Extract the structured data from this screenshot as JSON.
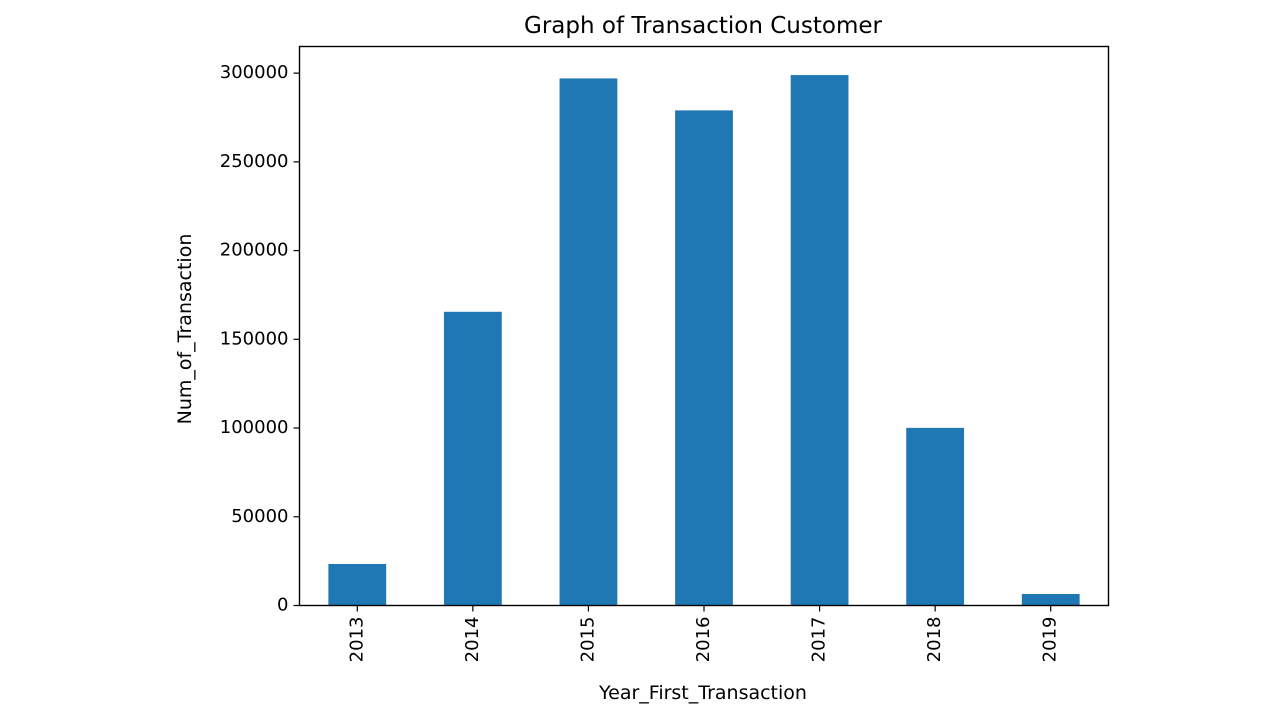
{
  "colors": {
    "bar": "#1f77b4",
    "axes": "#000000",
    "background": "#ffffff"
  },
  "chart_data": {
    "type": "bar",
    "title": "Graph of Transaction Customer",
    "xlabel": "Year_First_Transaction",
    "ylabel": "Num_of_Transaction",
    "categories": [
      "2013",
      "2014",
      "2015",
      "2016",
      "2017",
      "2018",
      "2019"
    ],
    "values": [
      23400,
      165500,
      297000,
      279000,
      298900,
      100100,
      6500
    ],
    "ylim": [
      0,
      315000
    ],
    "yticks": [
      0,
      50000,
      100000,
      150000,
      200000,
      250000,
      300000
    ],
    "ytick_labels": [
      "0",
      "50000",
      "100000",
      "150000",
      "200000",
      "250000",
      "300000"
    ],
    "grid": false,
    "legend": "none",
    "x_tick_rotation": "vertical"
  }
}
